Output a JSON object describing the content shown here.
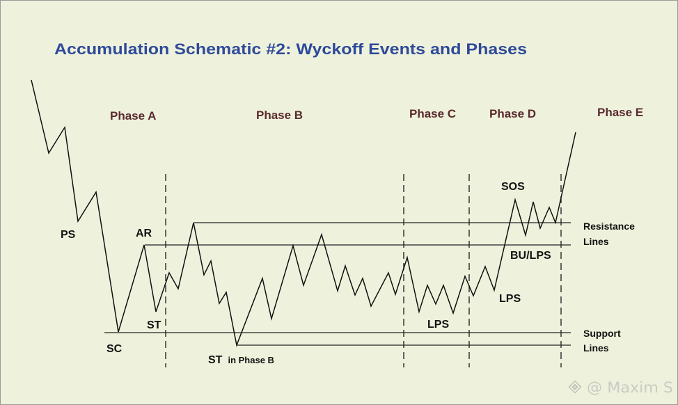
{
  "title": "Accumulation Schematic #2: Wyckoff Events and Phases",
  "phases": [
    {
      "label": "Phase A"
    },
    {
      "label": "Phase B"
    },
    {
      "label": "Phase C"
    },
    {
      "label": "Phase D"
    },
    {
      "label": "Phase E"
    }
  ],
  "events": {
    "ps": "PS",
    "ar": "AR",
    "sc": "SC",
    "st": "ST",
    "st_phase_b": "ST",
    "st_phase_b_suffix": "in Phase B",
    "lps_phase_c": "LPS",
    "lps_phase_d": "LPS",
    "sos": "SOS",
    "bu_lps": "BU/LPS"
  },
  "resistance_lines": {
    "line1": "Resistance",
    "line2": "Lines"
  },
  "support_lines": {
    "line1": "Support",
    "line2": "Lines"
  },
  "watermark": "@ Maxim S",
  "colors": {
    "background": "#eef2dc",
    "title": "#2f4a9a",
    "phase": "#5a2a2e",
    "watermark": "#c9cbc4"
  }
}
